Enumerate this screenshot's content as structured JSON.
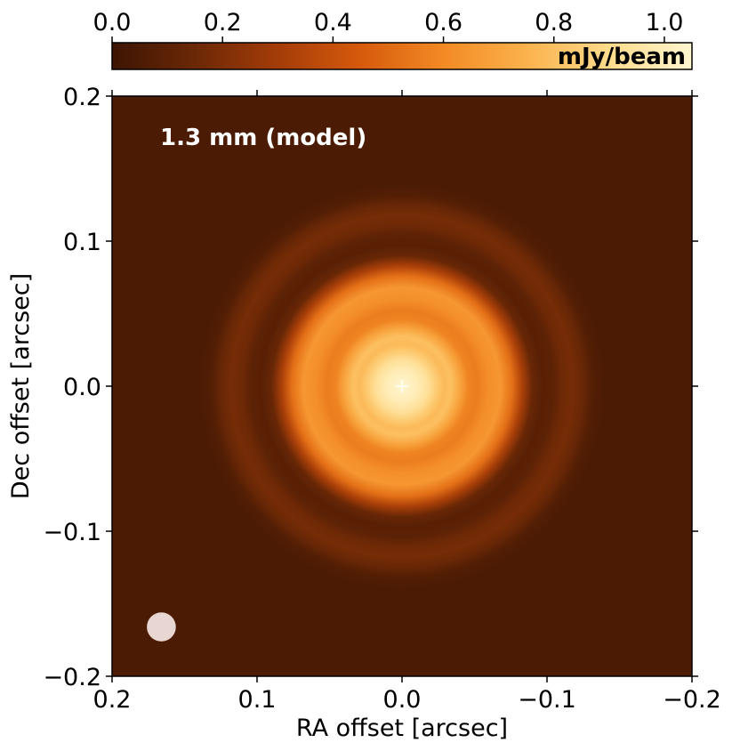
{
  "chart_data": {
    "type": "heatmap",
    "title": "",
    "panel_label": "1.3 mm (model)",
    "xlabel": "RA offset [arcsec]",
    "ylabel": "Dec offset [arcsec]",
    "xlim": [
      0.2,
      -0.2
    ],
    "ylim": [
      -0.2,
      0.2
    ],
    "x_ticks": [
      0.2,
      0.1,
      0.0,
      -0.1,
      -0.2
    ],
    "x_tick_labels": [
      "0.2",
      "0.1",
      "0.0",
      "−0.1",
      "−0.2"
    ],
    "y_ticks": [
      0.2,
      0.1,
      0.0,
      -0.1,
      -0.2
    ],
    "y_tick_labels": [
      "0.2",
      "0.1",
      "0.0",
      "−0.1",
      "−0.2"
    ],
    "colorbar": {
      "label": "mJy/beam",
      "range": [
        0.0,
        1.05
      ],
      "ticks": [
        0.0,
        0.2,
        0.4,
        0.6,
        0.8,
        1.0
      ],
      "tick_labels": [
        "0.0",
        "0.2",
        "0.4",
        "0.6",
        "0.8",
        "1.0"
      ],
      "colormap": [
        "#3d1503",
        "#6b2806",
        "#a43c08",
        "#d65a0c",
        "#f38a24",
        "#fbb24c",
        "#fedb8c",
        "#fff6cf"
      ]
    },
    "background_value": 0.05,
    "radial_profile": [
      {
        "r": 0.0,
        "v": 1.05
      },
      {
        "r": 0.01,
        "v": 1.0
      },
      {
        "r": 0.018,
        "v": 0.93
      },
      {
        "r": 0.024,
        "v": 0.84
      },
      {
        "r": 0.029,
        "v": 0.78
      },
      {
        "r": 0.034,
        "v": 0.8
      },
      {
        "r": 0.04,
        "v": 0.7
      },
      {
        "r": 0.046,
        "v": 0.58
      },
      {
        "r": 0.052,
        "v": 0.56
      },
      {
        "r": 0.06,
        "v": 0.62
      },
      {
        "r": 0.068,
        "v": 0.65
      },
      {
        "r": 0.076,
        "v": 0.52
      },
      {
        "r": 0.083,
        "v": 0.32
      },
      {
        "r": 0.09,
        "v": 0.14
      },
      {
        "r": 0.097,
        "v": 0.09
      },
      {
        "r": 0.104,
        "v": 0.1
      },
      {
        "r": 0.111,
        "v": 0.16
      },
      {
        "r": 0.118,
        "v": 0.18
      },
      {
        "r": 0.125,
        "v": 0.14
      },
      {
        "r": 0.132,
        "v": 0.07
      },
      {
        "r": 0.14,
        "v": 0.05
      }
    ],
    "center_marker": {
      "x": 0.0,
      "y": 0.0,
      "symbol": "+",
      "color": "#ffffff"
    },
    "beam": {
      "x": 0.166,
      "y": -0.166,
      "diameter_arcsec": 0.02,
      "color": "#e8d6d2"
    }
  }
}
